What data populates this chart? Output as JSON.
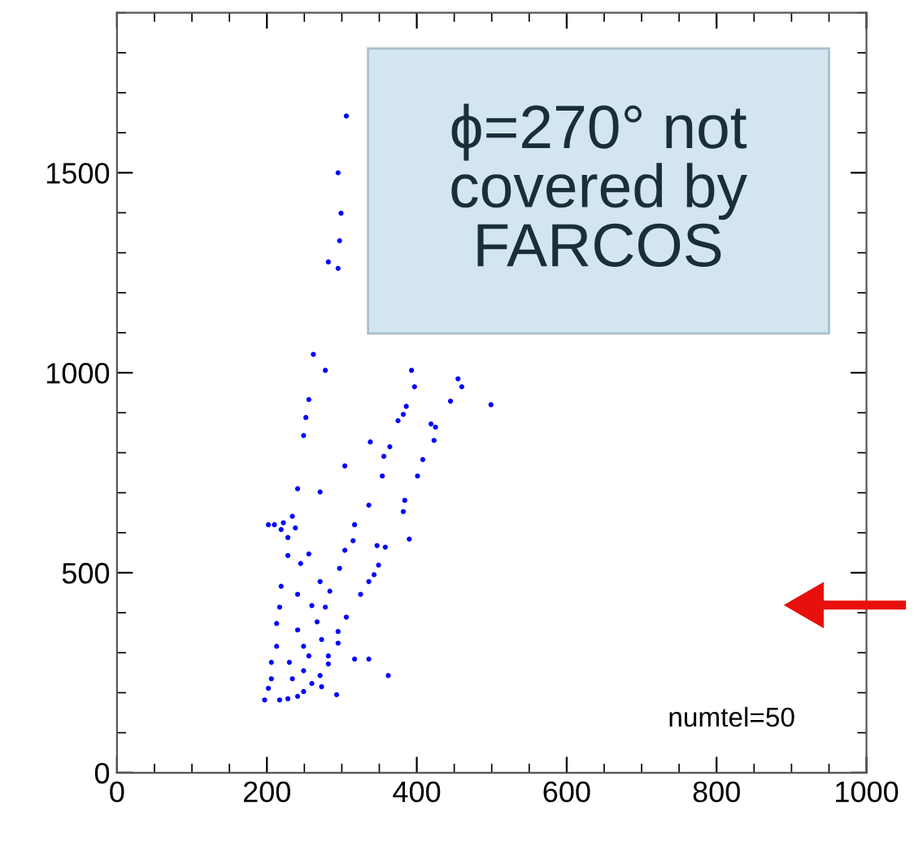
{
  "chart_data": {
    "type": "scatter",
    "marker": "circle",
    "grid": false,
    "legend": false,
    "xlim": [
      0,
      1000
    ],
    "ylim": [
      0,
      1900
    ],
    "xticks": [
      0,
      200,
      400,
      600,
      800,
      1000
    ],
    "yticks": [
      0,
      500,
      1000,
      1500
    ],
    "annotations": [
      "ϕ=270° not covered by FARCOS",
      "numtel=50"
    ],
    "series": [
      {
        "color": "#0000ff",
        "x": [
          306,
          295,
          299,
          297,
          282,
          295,
          262,
          278,
          393,
          397,
          455,
          460,
          499,
          445,
          386,
          382,
          375,
          256,
          252,
          419,
          249,
          338,
          364,
          356,
          304,
          354,
          401,
          408,
          423,
          425,
          241,
          271,
          336,
          384,
          382,
          234,
          202,
          219,
          228,
          317,
          390,
          315,
          304,
          358,
          347,
          228,
          256,
          245,
          297,
          349,
          343,
          336,
          219,
          271,
          284,
          325,
          241,
          217,
          260,
          278,
          306,
          213,
          241,
          267,
          295,
          249,
          213,
          273,
          295,
          256,
          282,
          230,
          206,
          317,
          336,
          282,
          249,
          271,
          362,
          206,
          234,
          260,
          202,
          273,
          293,
          197,
          217,
          241,
          228,
          249,
          210,
          222,
          238
        ],
        "values": [
          1642,
          1500,
          1399,
          1330,
          1277,
          1261,
          1046,
          1006,
          1006,
          965,
          985,
          965,
          920,
          929,
          916,
          896,
          880,
          933,
          888,
          872,
          843,
          827,
          815,
          791,
          767,
          742,
          742,
          783,
          831,
          864,
          710,
          702,
          669,
          681,
          653,
          641,
          620,
          608,
          588,
          620,
          584,
          580,
          556,
          564,
          568,
          543,
          547,
          523,
          511,
          519,
          495,
          478,
          466,
          478,
          454,
          446,
          446,
          414,
          418,
          414,
          389,
          373,
          357,
          377,
          353,
          316,
          316,
          333,
          324,
          292,
          292,
          276,
          276,
          284,
          284,
          272,
          255,
          243,
          243,
          235,
          235,
          223,
          211,
          215,
          195,
          182,
          182,
          191,
          185,
          203,
          620,
          625,
          612
        ]
      }
    ]
  }
}
